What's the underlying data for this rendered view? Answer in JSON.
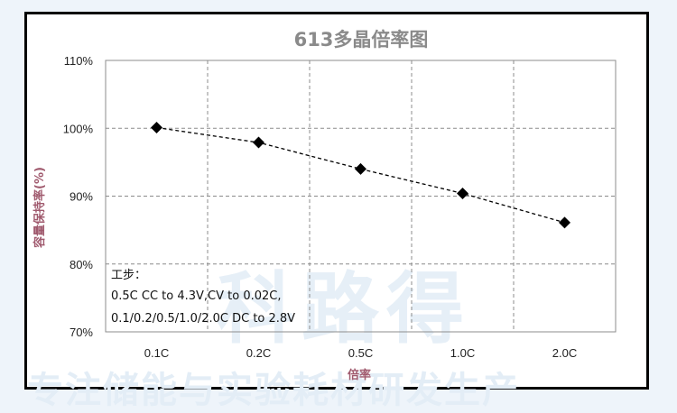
{
  "watermark": {
    "line": "专注储能与实验耗材研发生产",
    "big": "科路得"
  },
  "notes": {
    "heading": "工步：",
    "line1": "0.5C CC to 4.3V,CV to 0.02C,",
    "line2": "0.1/0.2/0.5/1.0/2.0C DC to 2.8V"
  },
  "chart_data": {
    "type": "line",
    "title": "613多晶倍率图",
    "xlabel": "倍率",
    "ylabel": "容量保持率(%)",
    "categories": [
      "0.1C",
      "0.2C",
      "0.5C",
      "1.0C",
      "2.0C"
    ],
    "values": [
      100.1,
      97.9,
      94.0,
      90.4,
      86.1
    ],
    "ylim": [
      70,
      110
    ],
    "yticks": [
      70,
      80,
      90,
      100,
      110
    ],
    "ytick_labels": [
      "70%",
      "80%",
      "90%",
      "100%",
      "110%"
    ],
    "grid": true,
    "line_style": "dashed",
    "marker": "diamond",
    "line_color": "#000000"
  }
}
